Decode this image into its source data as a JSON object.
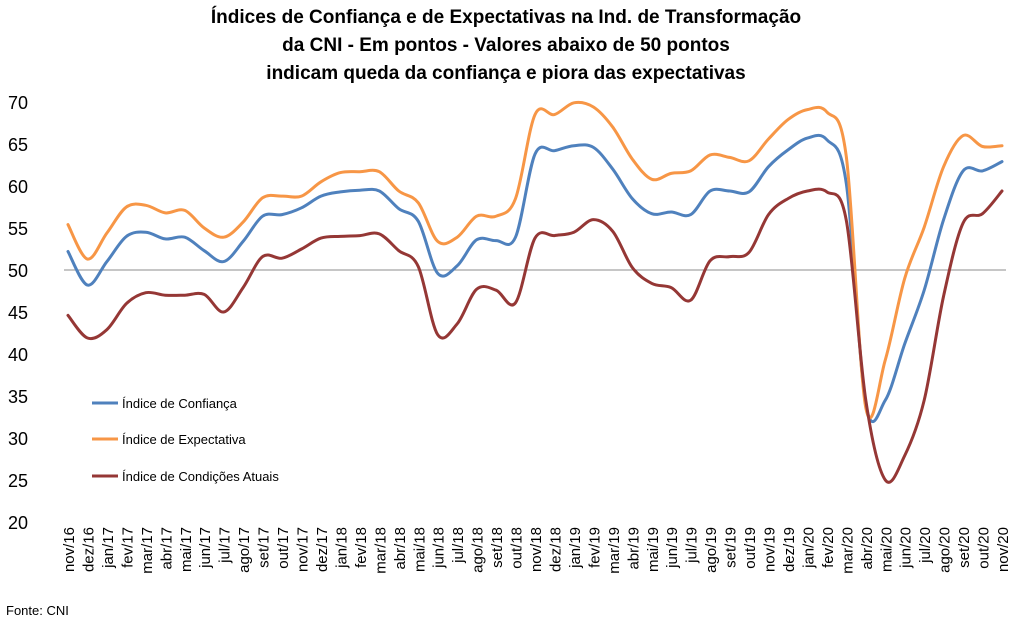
{
  "chart_data": {
    "type": "line",
    "title_lines": [
      "Índices de Confiança e de Expectativas na Ind. de Transformação",
      "da CNI - Em pontos - Valores abaixo de 50 pontos",
      "indicam queda da confiança e piora das expectativas"
    ],
    "ylim": [
      20,
      70
    ],
    "yticks": [
      "20",
      "25",
      "30",
      "35",
      "40",
      "45",
      "50",
      "55",
      "60",
      "65",
      "70"
    ],
    "reference_line": 50,
    "grid": false,
    "legend_placement": "left-middle",
    "categories": [
      "nov/16",
      "dez/16",
      "jan/17",
      "fev/17",
      "mar/17",
      "abr/17",
      "mai/17",
      "jun/17",
      "jul/17",
      "ago/17",
      "set/17",
      "out/17",
      "nov/17",
      "dez/17",
      "jan/18",
      "fev/18",
      "mar/18",
      "abr/18",
      "mai/18",
      "jun/18",
      "jul/18",
      "ago/18",
      "set/18",
      "out/18",
      "nov/18",
      "dez/18",
      "jan/19",
      "fev/19",
      "mar/19",
      "abr/19",
      "mai/19",
      "jun/19",
      "jul/19",
      "ago/19",
      "set/19",
      "out/19",
      "nov/19",
      "dez/19",
      "jan/20",
      "fev/20",
      "mar/20",
      "abr/20",
      "mai/20",
      "jun/20",
      "jul/20",
      "ago/20",
      "set/20",
      "out/20",
      "nov/20"
    ],
    "series": [
      {
        "name": "Índice de Confiança",
        "color": "#4f81bd",
        "values": [
          52.2,
          48.2,
          51.0,
          54.0,
          54.5,
          53.7,
          53.9,
          52.3,
          51.0,
          53.4,
          56.4,
          56.6,
          57.4,
          58.8,
          59.3,
          59.5,
          59.4,
          57.3,
          55.8,
          49.6,
          50.5,
          53.6,
          53.5,
          53.9,
          63.8,
          64.2,
          64.8,
          64.6,
          62.0,
          58.5,
          56.7,
          56.9,
          56.6,
          59.4,
          59.4,
          59.3,
          62.3,
          64.3,
          65.7,
          65.5,
          60.3,
          34.0,
          34.5,
          41.2,
          47.6,
          56.0,
          61.8,
          61.8,
          62.9
        ]
      },
      {
        "name": "Índice de Expectativa",
        "color": "#f79646",
        "values": [
          55.4,
          51.3,
          54.4,
          57.5,
          57.7,
          56.8,
          57.1,
          55.0,
          53.9,
          55.7,
          58.6,
          58.8,
          58.8,
          60.5,
          61.6,
          61.7,
          61.7,
          59.4,
          58.0,
          53.4,
          53.9,
          56.4,
          56.4,
          58.5,
          68.5,
          68.5,
          69.9,
          69.4,
          67.0,
          63.2,
          60.8,
          61.5,
          61.8,
          63.7,
          63.4,
          63.0,
          65.6,
          67.9,
          69.1,
          68.8,
          63.5,
          33.6,
          39.3,
          49.0,
          55.1,
          62.3,
          66.0,
          64.7,
          64.8
        ]
      },
      {
        "name": "Índice de Condições Atuais",
        "color": "#953735",
        "values": [
          44.6,
          41.9,
          42.9,
          46.0,
          47.3,
          47.0,
          47.0,
          47.1,
          45.0,
          47.9,
          51.6,
          51.4,
          52.5,
          53.8,
          54.0,
          54.1,
          54.3,
          52.3,
          50.4,
          42.3,
          43.6,
          47.7,
          47.6,
          46.1,
          53.8,
          54.1,
          54.5,
          56.0,
          54.6,
          50.3,
          48.4,
          47.9,
          46.4,
          51.1,
          51.6,
          52.1,
          56.6,
          58.5,
          59.4,
          59.3,
          55.9,
          34.5,
          25.0,
          27.9,
          34.5,
          46.9,
          55.6,
          56.7,
          59.4
        ]
      }
    ]
  },
  "source_label": "Fonte: CNI"
}
